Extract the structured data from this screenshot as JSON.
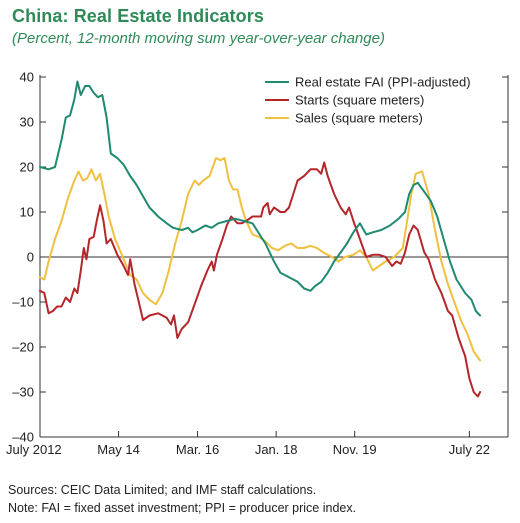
{
  "title": "China: Real Estate Indicators",
  "subtitle": "(Percent, 12-month moving sum year-over-year change)",
  "sources": "Sources: CEIC Data Limited; and IMF staff calculations.",
  "note": "Note: FAI = fixed asset investment; PPI = producer price index.",
  "chart_data": {
    "type": "line",
    "title": "China: Real Estate Indicators",
    "subtitle": "(Percent, 12-month moving sum year-over-year change)",
    "xlim": [
      2012.5,
      2023.4
    ],
    "ylim": [
      -40,
      40
    ],
    "y_ticks": [
      40,
      30,
      20,
      10,
      0,
      -10,
      -20,
      -30,
      -40
    ],
    "y_tick_labels": [
      "40",
      "30",
      "20",
      "10",
      "0",
      "–10",
      "–20",
      "–30",
      "–40"
    ],
    "x_ticks": [
      {
        "label": "July 2012",
        "x": 2012.5
      },
      {
        "label": "May 14",
        "x": 2014.33
      },
      {
        "label": "Mar. 16",
        "x": 2016.17
      },
      {
        "label": "Jan. 18",
        "x": 2018.0
      },
      {
        "label": "Nov. 19",
        "x": 2019.83
      },
      {
        "label": "July 22",
        "x": 2022.5
      }
    ],
    "legend_position": "top-right",
    "grid": false,
    "series": [
      {
        "name": "Real estate FAI (PPI-adjusted)",
        "color": "#1f8a70",
        "points": [
          [
            2012.5,
            20
          ],
          [
            2012.7,
            19.5
          ],
          [
            2012.85,
            20
          ],
          [
            2013.0,
            26
          ],
          [
            2013.1,
            31
          ],
          [
            2013.2,
            31.5
          ],
          [
            2013.3,
            35
          ],
          [
            2013.37,
            39
          ],
          [
            2013.45,
            36
          ],
          [
            2013.55,
            38
          ],
          [
            2013.65,
            38
          ],
          [
            2013.75,
            36.5
          ],
          [
            2013.85,
            35.5
          ],
          [
            2013.95,
            36
          ],
          [
            2014.05,
            31
          ],
          [
            2014.15,
            23
          ],
          [
            2014.3,
            22
          ],
          [
            2014.45,
            20.5
          ],
          [
            2014.6,
            18
          ],
          [
            2014.75,
            16
          ],
          [
            2014.9,
            13.5
          ],
          [
            2015.05,
            11
          ],
          [
            2015.25,
            9
          ],
          [
            2015.45,
            7.5
          ],
          [
            2015.6,
            6.5
          ],
          [
            2015.8,
            6
          ],
          [
            2015.95,
            6.5
          ],
          [
            2016.05,
            5.5
          ],
          [
            2016.17,
            6
          ],
          [
            2016.35,
            7
          ],
          [
            2016.5,
            6.5
          ],
          [
            2016.65,
            7.5
          ],
          [
            2016.85,
            8
          ],
          [
            2017.05,
            8.5
          ],
          [
            2017.25,
            8
          ],
          [
            2017.45,
            7.5
          ],
          [
            2017.55,
            6
          ],
          [
            2017.75,
            3
          ],
          [
            2017.95,
            -1
          ],
          [
            2018.1,
            -3.5
          ],
          [
            2018.3,
            -4.5
          ],
          [
            2018.5,
            -5.5
          ],
          [
            2018.65,
            -7
          ],
          [
            2018.8,
            -7.5
          ],
          [
            2018.9,
            -6.5
          ],
          [
            2019.05,
            -5.5
          ],
          [
            2019.2,
            -3.5
          ],
          [
            2019.35,
            -1
          ],
          [
            2019.5,
            1
          ],
          [
            2019.65,
            3
          ],
          [
            2019.8,
            5.5
          ],
          [
            2019.95,
            7.5
          ],
          [
            2020.1,
            5
          ],
          [
            2020.25,
            5.5
          ],
          [
            2020.45,
            6
          ],
          [
            2020.65,
            7
          ],
          [
            2020.85,
            8.5
          ],
          [
            2021.0,
            10
          ],
          [
            2021.1,
            14
          ],
          [
            2021.2,
            16
          ],
          [
            2021.3,
            16.5
          ],
          [
            2021.45,
            14.5
          ],
          [
            2021.6,
            12.5
          ],
          [
            2021.75,
            9
          ],
          [
            2021.9,
            4
          ],
          [
            2022.05,
            -1
          ],
          [
            2022.2,
            -5
          ],
          [
            2022.4,
            -8
          ],
          [
            2022.55,
            -9.5
          ],
          [
            2022.65,
            -12
          ],
          [
            2022.75,
            -13
          ]
        ]
      },
      {
        "name": "Starts (square meters)",
        "color": "#b5262b",
        "points": [
          [
            2012.5,
            -7.5
          ],
          [
            2012.6,
            -8
          ],
          [
            2012.7,
            -12.5
          ],
          [
            2012.8,
            -12
          ],
          [
            2012.9,
            -11
          ],
          [
            2013.0,
            -11
          ],
          [
            2013.1,
            -9
          ],
          [
            2013.2,
            -10
          ],
          [
            2013.3,
            -7
          ],
          [
            2013.37,
            -8
          ],
          [
            2013.45,
            -3
          ],
          [
            2013.52,
            2
          ],
          [
            2013.58,
            -0.5
          ],
          [
            2013.65,
            4
          ],
          [
            2013.75,
            4.5
          ],
          [
            2013.82,
            8
          ],
          [
            2013.9,
            11.5
          ],
          [
            2013.98,
            8
          ],
          [
            2014.05,
            3
          ],
          [
            2014.15,
            4
          ],
          [
            2014.3,
            0.5
          ],
          [
            2014.45,
            -2
          ],
          [
            2014.55,
            -4
          ],
          [
            2014.6,
            -0.5
          ],
          [
            2014.7,
            -6
          ],
          [
            2014.8,
            -10
          ],
          [
            2014.9,
            -14
          ],
          [
            2015.05,
            -13
          ],
          [
            2015.25,
            -12.5
          ],
          [
            2015.45,
            -13.5
          ],
          [
            2015.55,
            -15
          ],
          [
            2015.62,
            -13
          ],
          [
            2015.7,
            -18
          ],
          [
            2015.8,
            -16
          ],
          [
            2015.95,
            -14.5
          ],
          [
            2016.1,
            -10.5
          ],
          [
            2016.25,
            -6.5
          ],
          [
            2016.4,
            -3
          ],
          [
            2016.5,
            -1
          ],
          [
            2016.55,
            -3
          ],
          [
            2016.62,
            0.5
          ],
          [
            2016.75,
            4
          ],
          [
            2016.85,
            7
          ],
          [
            2016.95,
            9
          ],
          [
            2017.1,
            7.5
          ],
          [
            2017.2,
            7.5
          ],
          [
            2017.3,
            8
          ],
          [
            2017.45,
            9
          ],
          [
            2017.55,
            9
          ],
          [
            2017.65,
            9
          ],
          [
            2017.7,
            11
          ],
          [
            2017.8,
            12
          ],
          [
            2017.85,
            9.5
          ],
          [
            2017.95,
            11
          ],
          [
            2018.1,
            10
          ],
          [
            2018.2,
            10
          ],
          [
            2018.3,
            11
          ],
          [
            2018.4,
            14
          ],
          [
            2018.5,
            17
          ],
          [
            2018.65,
            18
          ],
          [
            2018.8,
            19.5
          ],
          [
            2018.95,
            19.5
          ],
          [
            2019.05,
            18.5
          ],
          [
            2019.12,
            21
          ],
          [
            2019.2,
            18
          ],
          [
            2019.35,
            14
          ],
          [
            2019.5,
            11
          ],
          [
            2019.62,
            9.5
          ],
          [
            2019.7,
            11
          ],
          [
            2019.8,
            8
          ],
          [
            2019.95,
            4
          ],
          [
            2020.1,
            0
          ],
          [
            2020.25,
            0.5
          ],
          [
            2020.4,
            0.5
          ],
          [
            2020.55,
            0
          ],
          [
            2020.7,
            -2
          ],
          [
            2020.8,
            -1
          ],
          [
            2020.9,
            -1.5
          ],
          [
            2021.0,
            1
          ],
          [
            2021.1,
            5
          ],
          [
            2021.2,
            7
          ],
          [
            2021.3,
            6
          ],
          [
            2021.45,
            1
          ],
          [
            2021.55,
            -0.5
          ],
          [
            2021.7,
            -5
          ],
          [
            2021.85,
            -8
          ],
          [
            2022.0,
            -12
          ],
          [
            2022.1,
            -13
          ],
          [
            2022.25,
            -18
          ],
          [
            2022.4,
            -22
          ],
          [
            2022.5,
            -27
          ],
          [
            2022.6,
            -30
          ],
          [
            2022.7,
            -31
          ],
          [
            2022.75,
            -30
          ]
        ]
      },
      {
        "name": "Sales (square meters)",
        "color": "#f0c040",
        "points": [
          [
            2012.5,
            -4.5
          ],
          [
            2012.6,
            -5
          ],
          [
            2012.7,
            -1
          ],
          [
            2012.85,
            4
          ],
          [
            2013.0,
            8
          ],
          [
            2013.15,
            13
          ],
          [
            2013.3,
            17
          ],
          [
            2013.4,
            19
          ],
          [
            2013.5,
            17
          ],
          [
            2013.6,
            17.5
          ],
          [
            2013.7,
            19.5
          ],
          [
            2013.8,
            17
          ],
          [
            2013.9,
            18.5
          ],
          [
            2014.0,
            14
          ],
          [
            2014.1,
            9
          ],
          [
            2014.25,
            4
          ],
          [
            2014.45,
            -0.5
          ],
          [
            2014.6,
            -4
          ],
          [
            2014.75,
            -5
          ],
          [
            2014.9,
            -8
          ],
          [
            2015.05,
            -9.5
          ],
          [
            2015.2,
            -10.5
          ],
          [
            2015.35,
            -8
          ],
          [
            2015.5,
            -3
          ],
          [
            2015.65,
            3
          ],
          [
            2015.8,
            8
          ],
          [
            2015.95,
            14
          ],
          [
            2016.1,
            17
          ],
          [
            2016.2,
            16
          ],
          [
            2016.3,
            17
          ],
          [
            2016.45,
            18
          ],
          [
            2016.6,
            22
          ],
          [
            2016.7,
            21.5
          ],
          [
            2016.8,
            22
          ],
          [
            2016.9,
            17
          ],
          [
            2017.0,
            15
          ],
          [
            2017.1,
            15
          ],
          [
            2017.2,
            11
          ],
          [
            2017.3,
            8
          ],
          [
            2017.45,
            5
          ],
          [
            2017.6,
            4.5
          ],
          [
            2017.75,
            3.5
          ],
          [
            2017.9,
            2
          ],
          [
            2018.05,
            1.5
          ],
          [
            2018.2,
            2.5
          ],
          [
            2018.35,
            3
          ],
          [
            2018.5,
            2
          ],
          [
            2018.65,
            2
          ],
          [
            2018.8,
            2.5
          ],
          [
            2018.95,
            2
          ],
          [
            2019.1,
            1
          ],
          [
            2019.3,
            0
          ],
          [
            2019.45,
            -1
          ],
          [
            2019.6,
            0
          ],
          [
            2019.8,
            0.5
          ],
          [
            2019.95,
            1.5
          ],
          [
            2020.1,
            0
          ],
          [
            2020.25,
            -3
          ],
          [
            2020.4,
            -2
          ],
          [
            2020.55,
            -1
          ],
          [
            2020.75,
            0
          ],
          [
            2020.95,
            2
          ],
          [
            2021.05,
            8
          ],
          [
            2021.15,
            14
          ],
          [
            2021.25,
            18.5
          ],
          [
            2021.4,
            19
          ],
          [
            2021.55,
            14
          ],
          [
            2021.7,
            6
          ],
          [
            2021.85,
            -1
          ],
          [
            2022.0,
            -6
          ],
          [
            2022.15,
            -10
          ],
          [
            2022.3,
            -14
          ],
          [
            2022.45,
            -17
          ],
          [
            2022.6,
            -21
          ],
          [
            2022.75,
            -23
          ]
        ]
      }
    ]
  }
}
